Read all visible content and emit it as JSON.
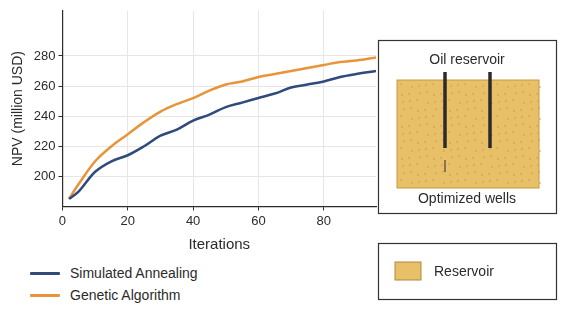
{
  "chart_data": {
    "type": "line",
    "x_label": "Iterations",
    "y_label": "NPV (million USD)",
    "xlim": [
      0,
      96
    ],
    "xticks": [
      0,
      20,
      40,
      60,
      80
    ],
    "ylim": [
      180,
      310
    ],
    "yticks": [
      200,
      220,
      240,
      260,
      280
    ],
    "grid": true,
    "legend": "bottom",
    "x": [
      2,
      5,
      10,
      15,
      20,
      25,
      30,
      35,
      40,
      45,
      50,
      55,
      60,
      65,
      70,
      75,
      80,
      85,
      90,
      96
    ],
    "series": [
      {
        "name": "Simulated Annealing",
        "color": "#2f4b7c",
        "values": [
          185,
          190,
          203,
          210,
          214,
          220,
          227,
          231,
          237,
          241,
          246,
          249,
          252,
          255,
          259,
          261,
          263,
          266,
          268,
          270
        ]
      },
      {
        "name": "Genetic Algorithm",
        "color": "#e8943a",
        "values": [
          185,
          195,
          210,
          220,
          228,
          236,
          243,
          248,
          252,
          257,
          261,
          263,
          266,
          268,
          270,
          272,
          274,
          276,
          277,
          279
        ]
      }
    ]
  },
  "diagram": {
    "title": "Oil reservoir",
    "label": "Optimized wells",
    "legend": "Reservoir",
    "color": "#e8c068"
  }
}
